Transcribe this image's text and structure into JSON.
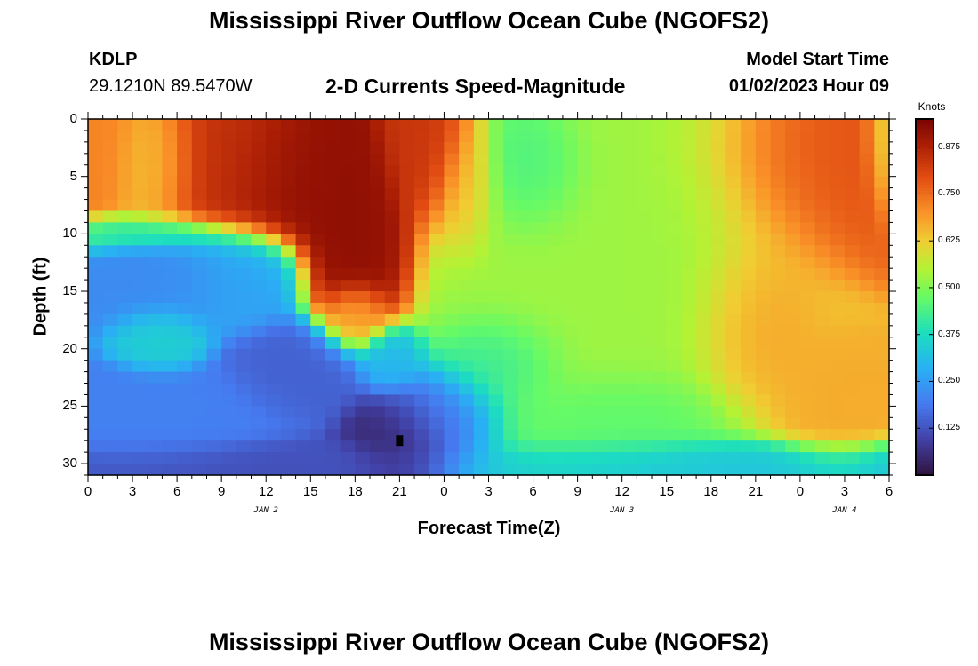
{
  "header": {
    "title": "Mississippi River Outflow Ocean Cube (NGOFS2)",
    "station": "KDLP",
    "coords": "29.1210N  89.5470W",
    "subtitle": "2-D Currents Speed-Magnitude",
    "model_start_label": "Model Start Time",
    "model_start_time": "01/02/2023 Hour 09"
  },
  "footer": {
    "title": "Mississippi River Outflow Ocean Cube (NGOFS2)"
  },
  "chart_data": {
    "type": "heatmap",
    "title": "2-D Currents Speed-Magnitude",
    "xlabel": "Forecast Time(Z)",
    "ylabel": "Depth (ft)",
    "x_range_hours": [
      0,
      54
    ],
    "x_ticks": [
      "0",
      "3",
      "6",
      "9",
      "12",
      "15",
      "18",
      "21",
      "0",
      "3",
      "6",
      "9",
      "12",
      "15",
      "18",
      "21",
      "0",
      "3",
      "6"
    ],
    "day_labels": [
      {
        "label": "JAN 2",
        "hour": 12
      },
      {
        "label": "JAN 3",
        "hour": 36
      },
      {
        "label": "JAN 4",
        "hour": 51
      }
    ],
    "y_range_ft": [
      0,
      31
    ],
    "y_ticks": [
      0,
      5,
      10,
      15,
      20,
      25,
      30
    ],
    "colorbar": {
      "units": "Knots",
      "range": [
        0,
        0.95
      ],
      "ticks": [
        "0.875",
        "0.750",
        "0.625",
        "0.500",
        "0.375",
        "0.250",
        "0.125"
      ],
      "tick_values": [
        0.875,
        0.75,
        0.625,
        0.5,
        0.375,
        0.25,
        0.125
      ]
    },
    "features": [
      {
        "hour": 0,
        "depth": 3,
        "speed": 0.72,
        "sh": 2.5,
        "sd": 4
      },
      {
        "hour": 4.5,
        "depth": 4,
        "speed": 0.62,
        "sh": 2,
        "sd": 3.5
      },
      {
        "hour": 9,
        "depth": 4,
        "speed": 0.84,
        "sh": 4,
        "sd": 4
      },
      {
        "hour": 14,
        "depth": 5,
        "speed": 0.92,
        "sh": 4,
        "sd": 4
      },
      {
        "hour": 18,
        "depth": 11,
        "speed": 0.92,
        "sh": 2.5,
        "sd": 5
      },
      {
        "hour": 18,
        "depth": 17,
        "speed": 0.65,
        "sh": 1.5,
        "sd": 2
      },
      {
        "hour": 23,
        "depth": 3,
        "speed": 0.84,
        "sh": 2,
        "sd": 4
      },
      {
        "hour": 25.5,
        "depth": 6,
        "speed": 0.64,
        "sh": 1.5,
        "sd": 4
      },
      {
        "hour": 30,
        "depth": 5,
        "speed": 0.43,
        "sh": 2.5,
        "sd": 4
      },
      {
        "hour": 32,
        "depth": 15,
        "speed": 0.53,
        "sh": 6,
        "sd": 10
      },
      {
        "hour": 40,
        "depth": 10,
        "speed": 0.53,
        "sh": 6,
        "sd": 12
      },
      {
        "hour": 48,
        "depth": 4,
        "speed": 0.79,
        "sh": 5,
        "sd": 6
      },
      {
        "hour": 45,
        "depth": 17,
        "speed": 0.7,
        "sh": 3,
        "sd": 6
      },
      {
        "hour": 50,
        "depth": 24,
        "speed": 0.67,
        "sh": 3,
        "sd": 4
      },
      {
        "hour": 54,
        "depth": 2,
        "speed": 0.6,
        "sh": 1,
        "sd": 4
      },
      {
        "hour": 35,
        "depth": 26,
        "speed": 0.45,
        "sh": 6,
        "sd": 3
      },
      {
        "hour": 5,
        "depth": 14,
        "speed": 0.22,
        "sh": 4,
        "sd": 3
      },
      {
        "hour": 10,
        "depth": 14,
        "speed": 0.27,
        "sh": 3,
        "sd": 3
      },
      {
        "hour": 5,
        "depth": 19,
        "speed": 0.35,
        "sh": 2,
        "sd": 2
      },
      {
        "hour": 14,
        "depth": 22,
        "speed": 0.15,
        "sh": 3,
        "sd": 3
      },
      {
        "hour": 6,
        "depth": 26,
        "speed": 0.2,
        "sh": 5,
        "sd": 3
      },
      {
        "hour": 21,
        "depth": 28,
        "speed": 0.04,
        "sh": 2.5,
        "sd": 3
      },
      {
        "hour": 24,
        "depth": 26,
        "speed": 0.18,
        "sh": 3,
        "sd": 3
      },
      {
        "hour": 20.5,
        "depth": 21,
        "speed": 0.3,
        "sh": 1.5,
        "sd": 2
      },
      {
        "hour": 28,
        "depth": 21,
        "speed": 0.4,
        "sh": 3,
        "sd": 3
      },
      {
        "hour": 40,
        "depth": 30,
        "speed": 0.32,
        "sh": 12,
        "sd": 1.5
      },
      {
        "hour": 3,
        "depth": 10,
        "speed": 0.42,
        "sh": 4,
        "sd": 1
      },
      {
        "hour": 12,
        "depth": 30,
        "speed": 0.12,
        "sh": 8,
        "sd": 1.5
      }
    ],
    "grid_hours_step": 1,
    "grid_depth_step": 1
  }
}
